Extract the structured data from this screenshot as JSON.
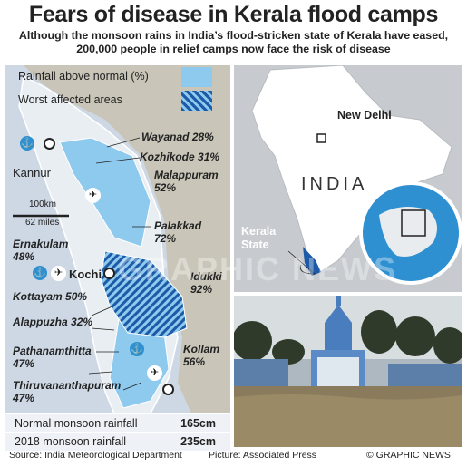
{
  "title": "Fears of disease in Kerala flood camps",
  "subtitle": "Although the monsoon rains in India’s flood-stricken state of Kerala have eased, 200,000 people in relief camps now face the risk of disease",
  "legend": {
    "rainfall": {
      "label": "Rainfall above normal (%)",
      "color": "#8ec9ee"
    },
    "worst": {
      "label": "Worst affected areas",
      "color": "#1d5aa8"
    }
  },
  "districts": [
    {
      "name": "Wayanad",
      "value": "28%"
    },
    {
      "name": "Kozhikode",
      "value": "31%"
    },
    {
      "name": "Malappuram",
      "value": "52%"
    },
    {
      "name": "Palakkad",
      "value": "72%"
    },
    {
      "name": "Ernakulam",
      "value": "48%"
    },
    {
      "name": "Idukki",
      "value": "92%"
    },
    {
      "name": "Kottayam",
      "value": "50%"
    },
    {
      "name": "Alappuzha",
      "value": "32%"
    },
    {
      "name": "Pathanamthitta",
      "value": "47%"
    },
    {
      "name": "Kollam",
      "value": "56%"
    },
    {
      "name": "Thiruvananthapuram",
      "value": "47%"
    }
  ],
  "cities": {
    "kannur": "Kannur",
    "kochi": "Kochi"
  },
  "scale": {
    "km": "100km",
    "miles": "62 miles"
  },
  "locator": {
    "country": "INDIA",
    "capital": "New Delhi",
    "state": "Kerala State"
  },
  "stats": [
    {
      "label": "Normal monsoon rainfall",
      "value": "165cm"
    },
    {
      "label": "2018 monsoon rainfall",
      "value": "235cm"
    }
  ],
  "credits": {
    "source": "Source: India Meteorological Department",
    "picture": "Picture: Associated Press",
    "brand": "© GRAPHIC NEWS"
  },
  "watermark": "GRAPHIC NEWS",
  "colors": {
    "sea": "#cdd8e4",
    "land": "#c9c5b8",
    "rain": "#8ec9ee",
    "worst": "#1d5aa8"
  }
}
